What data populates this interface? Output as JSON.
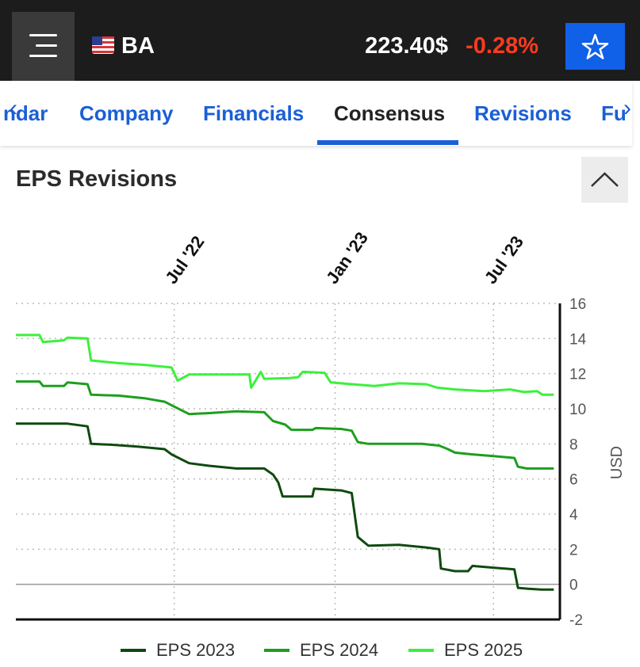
{
  "header": {
    "ticker": "BA",
    "flag_icon": "us-flag-icon",
    "price": "223.40$",
    "change": "-0.28%",
    "colors": {
      "background": "#1c1c1c",
      "change": "#ff3b1f",
      "star_button": "#1060e8"
    }
  },
  "tabs": [
    {
      "label": "ndar"
    },
    {
      "label": "Company"
    },
    {
      "label": "Financials"
    },
    {
      "label": "Consensus",
      "active": true
    },
    {
      "label": "Revisions"
    },
    {
      "label": "Fu"
    }
  ],
  "section": {
    "title": "EPS Revisions"
  },
  "chart_data": {
    "type": "line",
    "title": "",
    "xlabel": "",
    "ylabel": "USD",
    "y_axis_side": "right",
    "ylim": [
      -2,
      16
    ],
    "yticks": [
      "16",
      "14",
      "12",
      "10",
      "8",
      "6",
      "4",
      "2",
      "0",
      "-2"
    ],
    "xticks": [
      "Jul '22",
      "Jan '23",
      "Jul '23"
    ],
    "x_range": [
      "2022-01-01",
      "2023-09-15"
    ],
    "grid": true,
    "legend": "bottom",
    "series": [
      {
        "name": "EPS 2023",
        "color": "#0f4a0f",
        "points": [
          [
            "2022-01-01",
            9.15
          ],
          [
            "2022-03-01",
            9.15
          ],
          [
            "2022-03-24",
            9.0
          ],
          [
            "2022-03-28",
            8.0
          ],
          [
            "2022-04-20",
            7.95
          ],
          [
            "2022-05-20",
            7.85
          ],
          [
            "2022-06-20",
            7.7
          ],
          [
            "2022-06-28",
            7.4
          ],
          [
            "2022-07-18",
            6.9
          ],
          [
            "2022-08-10",
            6.75
          ],
          [
            "2022-09-10",
            6.6
          ],
          [
            "2022-10-12",
            6.6
          ],
          [
            "2022-10-22",
            6.25
          ],
          [
            "2022-10-28",
            5.8
          ],
          [
            "2022-11-02",
            5.0
          ],
          [
            "2022-12-06",
            5.0
          ],
          [
            "2022-12-08",
            5.45
          ],
          [
            "2023-01-08",
            5.35
          ],
          [
            "2023-01-20",
            5.2
          ],
          [
            "2023-01-27",
            2.7
          ],
          [
            "2023-02-08",
            2.2
          ],
          [
            "2023-03-15",
            2.25
          ],
          [
            "2023-04-15",
            2.1
          ],
          [
            "2023-04-30",
            2.0
          ],
          [
            "2023-05-02",
            0.9
          ],
          [
            "2023-05-18",
            0.75
          ],
          [
            "2023-06-02",
            0.75
          ],
          [
            "2023-06-07",
            1.05
          ],
          [
            "2023-07-01",
            0.95
          ],
          [
            "2023-07-25",
            0.85
          ],
          [
            "2023-07-29",
            -0.2
          ],
          [
            "2023-08-10",
            -0.25
          ],
          [
            "2023-08-25",
            -0.3
          ],
          [
            "2023-09-08",
            -0.3
          ]
        ]
      },
      {
        "name": "EPS 2024",
        "color": "#1e9e1e",
        "points": [
          [
            "2022-01-01",
            11.55
          ],
          [
            "2022-01-28",
            11.55
          ],
          [
            "2022-02-01",
            11.3
          ],
          [
            "2022-02-25",
            11.3
          ],
          [
            "2022-03-01",
            11.5
          ],
          [
            "2022-03-24",
            11.4
          ],
          [
            "2022-03-28",
            10.8
          ],
          [
            "2022-04-28",
            10.75
          ],
          [
            "2022-05-28",
            10.6
          ],
          [
            "2022-06-20",
            10.4
          ],
          [
            "2022-06-28",
            10.2
          ],
          [
            "2022-07-18",
            9.7
          ],
          [
            "2022-08-10",
            9.75
          ],
          [
            "2022-09-10",
            9.85
          ],
          [
            "2022-10-12",
            9.8
          ],
          [
            "2022-10-22",
            9.3
          ],
          [
            "2022-11-05",
            9.1
          ],
          [
            "2022-11-12",
            8.8
          ],
          [
            "2022-12-06",
            8.8
          ],
          [
            "2022-12-10",
            8.9
          ],
          [
            "2023-01-08",
            8.85
          ],
          [
            "2023-01-20",
            8.75
          ],
          [
            "2023-01-27",
            8.1
          ],
          [
            "2023-02-08",
            8.0
          ],
          [
            "2023-03-15",
            8.0
          ],
          [
            "2023-04-10",
            8.0
          ],
          [
            "2023-04-30",
            7.9
          ],
          [
            "2023-05-10",
            7.7
          ],
          [
            "2023-05-18",
            7.5
          ],
          [
            "2023-06-07",
            7.4
          ],
          [
            "2023-07-01",
            7.3
          ],
          [
            "2023-07-25",
            7.2
          ],
          [
            "2023-07-29",
            6.7
          ],
          [
            "2023-08-08",
            6.6
          ],
          [
            "2023-09-08",
            6.6
          ]
        ]
      },
      {
        "name": "EPS 2025",
        "color": "#3cf03c",
        "points": [
          [
            "2022-01-01",
            14.2
          ],
          [
            "2022-01-28",
            14.2
          ],
          [
            "2022-02-01",
            13.8
          ],
          [
            "2022-02-25",
            13.9
          ],
          [
            "2022-03-01",
            14.05
          ],
          [
            "2022-03-24",
            14.0
          ],
          [
            "2022-03-28",
            12.75
          ],
          [
            "2022-04-28",
            12.6
          ],
          [
            "2022-05-28",
            12.5
          ],
          [
            "2022-06-28",
            12.35
          ],
          [
            "2022-07-05",
            11.6
          ],
          [
            "2022-07-18",
            11.95
          ],
          [
            "2022-08-20",
            11.95
          ],
          [
            "2022-09-25",
            11.95
          ],
          [
            "2022-09-27",
            11.2
          ],
          [
            "2022-10-02",
            11.6
          ],
          [
            "2022-10-08",
            12.1
          ],
          [
            "2022-10-12",
            11.7
          ],
          [
            "2022-11-10",
            11.75
          ],
          [
            "2022-11-20",
            11.8
          ],
          [
            "2022-11-25",
            12.1
          ],
          [
            "2022-12-20",
            12.05
          ],
          [
            "2022-12-27",
            11.5
          ],
          [
            "2023-01-20",
            11.4
          ],
          [
            "2023-02-15",
            11.3
          ],
          [
            "2023-03-15",
            11.45
          ],
          [
            "2023-04-15",
            11.4
          ],
          [
            "2023-04-28",
            11.2
          ],
          [
            "2023-05-18",
            11.1
          ],
          [
            "2023-06-20",
            11.0
          ],
          [
            "2023-07-20",
            11.1
          ],
          [
            "2023-08-05",
            10.95
          ],
          [
            "2023-08-20",
            11.0
          ],
          [
            "2023-08-26",
            10.8
          ],
          [
            "2023-09-08",
            10.8
          ]
        ]
      }
    ]
  }
}
